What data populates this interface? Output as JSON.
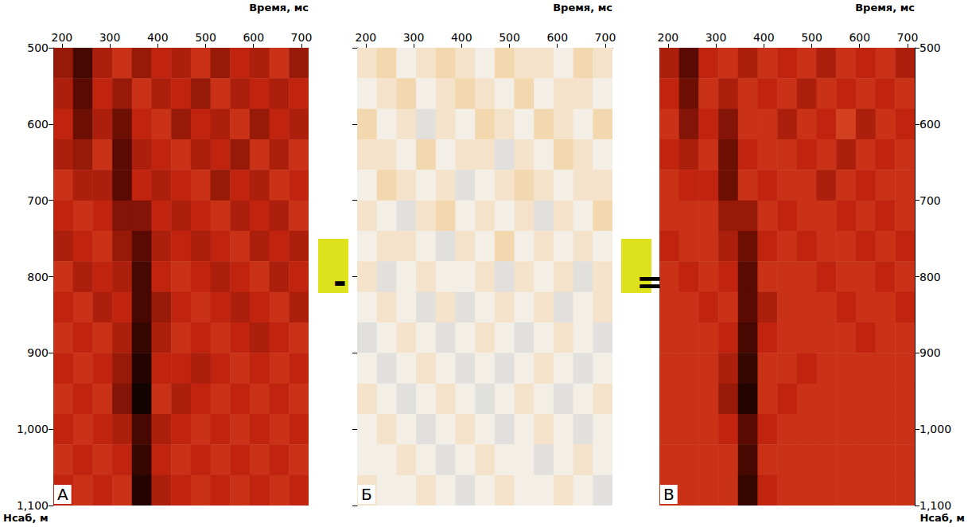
{
  "chart_data": [
    {
      "type": "heatmap",
      "label": "А",
      "x_label": "Время, мс",
      "y_label": "Нсаб, м",
      "xlim": [
        182,
        715
      ],
      "xticks": [
        200,
        300,
        400,
        500,
        600,
        700
      ],
      "ylim": [
        500,
        1100
      ],
      "yticks": [
        500,
        600,
        700,
        800,
        900,
        1000,
        1100
      ],
      "grid": false,
      "tick_labels": true,
      "colors": [
        "#000000",
        "#5a0a02",
        "#c0240e",
        "#ec6a3a",
        "#f6e3c4"
      ],
      "value_range": [
        -1,
        1
      ],
      "x_bins": [
        182,
        223,
        264,
        305,
        346,
        387,
        428,
        469,
        510,
        551,
        592,
        633,
        674,
        715
      ],
      "y_bins": [
        500,
        540,
        580,
        620,
        660,
        700,
        740,
        780,
        820,
        860,
        900,
        940,
        980,
        1020,
        1060,
        1100
      ],
      "cells": [
        [
          -0.2,
          -0.6,
          -0.1,
          0.1,
          -0.2,
          0.0,
          -0.1,
          0.1,
          -0.2,
          0.0,
          -0.1,
          0.1,
          -0.2
        ],
        [
          -0.1,
          -0.5,
          0.0,
          -0.2,
          0.1,
          -0.1,
          0.0,
          -0.2,
          0.1,
          -0.1,
          0.0,
          -0.1,
          0.0
        ],
        [
          0.0,
          -0.4,
          -0.1,
          -0.4,
          0.0,
          0.1,
          -0.2,
          0.0,
          -0.1,
          0.1,
          -0.2,
          0.0,
          -0.1
        ],
        [
          -0.1,
          -0.2,
          0.1,
          -0.5,
          -0.1,
          0.0,
          0.1,
          -0.1,
          0.0,
          -0.2,
          0.1,
          -0.1,
          0.1
        ],
        [
          0.1,
          -0.1,
          -0.1,
          -0.5,
          0.0,
          -0.1,
          0.0,
          0.1,
          -0.2,
          0.0,
          -0.1,
          0.1,
          0.0
        ],
        [
          0.0,
          0.1,
          0.0,
          -0.3,
          -0.3,
          0.0,
          -0.1,
          0.0,
          0.1,
          -0.1,
          0.0,
          -0.1,
          0.1
        ],
        [
          -0.1,
          0.0,
          0.1,
          -0.2,
          -0.5,
          -0.1,
          0.0,
          -0.1,
          0.0,
          0.1,
          -0.1,
          0.0,
          -0.1
        ],
        [
          0.1,
          -0.1,
          0.0,
          -0.1,
          -0.6,
          0.0,
          0.1,
          0.0,
          -0.1,
          0.0,
          0.1,
          -0.1,
          0.0
        ],
        [
          0.0,
          0.1,
          -0.1,
          0.0,
          -0.6,
          -0.2,
          0.0,
          0.1,
          0.0,
          -0.1,
          0.0,
          0.1,
          -0.1
        ],
        [
          0.1,
          0.0,
          0.1,
          -0.1,
          -0.7,
          -0.1,
          0.1,
          0.0,
          0.1,
          0.0,
          -0.1,
          0.0,
          0.1
        ],
        [
          0.0,
          0.1,
          0.0,
          -0.2,
          -0.8,
          0.0,
          0.0,
          -0.1,
          0.0,
          0.1,
          0.0,
          0.1,
          0.0
        ],
        [
          0.1,
          0.0,
          0.1,
          -0.3,
          -0.9,
          0.1,
          -0.1,
          0.0,
          0.1,
          0.0,
          0.1,
          0.0,
          0.1
        ],
        [
          0.0,
          0.1,
          0.0,
          -0.1,
          -0.6,
          -0.1,
          0.0,
          0.1,
          0.0,
          0.1,
          0.0,
          0.1,
          0.0
        ],
        [
          0.1,
          0.0,
          0.1,
          0.0,
          -0.7,
          0.0,
          0.1,
          0.0,
          0.1,
          0.0,
          0.1,
          0.0,
          0.1
        ],
        [
          0.0,
          0.1,
          0.0,
          0.1,
          -0.8,
          -0.1,
          0.0,
          0.1,
          0.0,
          0.1,
          0.0,
          0.1,
          0.0
        ]
      ]
    },
    {
      "type": "heatmap",
      "label": "Б",
      "x_label": "Время, мс",
      "xlim": [
        182,
        715
      ],
      "xticks": [
        200,
        300,
        400,
        500,
        600,
        700
      ],
      "ylim": [
        500,
        1100
      ],
      "yticks": [
        500,
        600,
        700,
        800,
        900,
        1000,
        1100
      ],
      "grid": false,
      "tick_labels": "x",
      "colors": [
        "#3c4f6a",
        "#9aa6b5",
        "#f4efe6",
        "#f2b35c",
        "#d9770f"
      ],
      "value_range": [
        -1,
        1
      ],
      "x_bins": [
        182,
        223,
        264,
        305,
        346,
        387,
        428,
        469,
        510,
        551,
        592,
        633,
        674,
        715
      ],
      "y_bins": [
        500,
        540,
        580,
        620,
        660,
        700,
        740,
        780,
        820,
        860,
        900,
        940,
        980,
        1020,
        1060,
        1100
      ],
      "cells": [
        [
          0.1,
          0.2,
          0.0,
          0.1,
          0.2,
          0.1,
          0.0,
          0.2,
          0.1,
          0.1,
          0.0,
          0.2,
          0.1
        ],
        [
          0.0,
          0.1,
          0.2,
          0.0,
          0.1,
          0.2,
          0.1,
          0.0,
          0.2,
          0.0,
          0.1,
          0.1,
          0.0
        ],
        [
          0.2,
          0.0,
          0.1,
          -0.1,
          0.1,
          0.0,
          0.2,
          0.1,
          0.0,
          0.2,
          0.1,
          0.0,
          0.2
        ],
        [
          0.1,
          0.1,
          0.0,
          0.2,
          0.0,
          0.1,
          0.1,
          -0.1,
          0.1,
          0.0,
          0.2,
          0.1,
          0.0
        ],
        [
          0.0,
          0.2,
          0.1,
          0.0,
          0.1,
          -0.1,
          0.0,
          0.1,
          0.2,
          0.1,
          0.0,
          0.1,
          0.1
        ],
        [
          0.1,
          0.0,
          -0.1,
          0.1,
          0.2,
          0.0,
          0.1,
          0.0,
          0.1,
          -0.1,
          0.1,
          0.0,
          0.2
        ],
        [
          0.0,
          0.1,
          0.1,
          0.0,
          -0.1,
          0.1,
          0.0,
          0.2,
          0.0,
          0.1,
          0.0,
          0.1,
          0.0
        ],
        [
          0.1,
          -0.1,
          0.0,
          0.1,
          0.0,
          0.0,
          0.1,
          -0.1,
          0.1,
          0.0,
          0.1,
          -0.1,
          0.1
        ],
        [
          0.0,
          0.1,
          0.0,
          -0.1,
          0.1,
          -0.1,
          0.0,
          0.1,
          0.0,
          0.1,
          -0.1,
          0.0,
          0.1
        ],
        [
          -0.1,
          0.0,
          0.1,
          0.0,
          -0.1,
          0.0,
          0.1,
          0.0,
          -0.1,
          0.0,
          0.1,
          0.0,
          -0.1
        ],
        [
          0.0,
          -0.1,
          0.0,
          0.1,
          0.0,
          -0.1,
          0.0,
          -0.1,
          0.0,
          0.1,
          0.0,
          -0.1,
          0.0
        ],
        [
          0.1,
          0.0,
          -0.1,
          0.0,
          0.1,
          0.0,
          -0.1,
          0.0,
          0.1,
          0.0,
          -0.1,
          0.0,
          0.1
        ],
        [
          0.0,
          0.1,
          0.0,
          -0.1,
          0.0,
          0.1,
          0.0,
          -0.1,
          0.0,
          0.1,
          0.0,
          -0.1,
          0.0
        ],
        [
          0.0,
          0.0,
          0.1,
          0.0,
          -0.1,
          0.0,
          0.1,
          0.0,
          0.0,
          -0.1,
          0.0,
          0.1,
          0.0
        ],
        [
          0.1,
          0.0,
          0.0,
          0.1,
          0.0,
          -0.1,
          0.0,
          0.1,
          0.0,
          0.0,
          0.1,
          0.0,
          -0.1
        ]
      ]
    },
    {
      "type": "heatmap",
      "label": "В",
      "x_label": "Время, мс",
      "y_label": "Нсаб, м",
      "xlim": [
        182,
        715
      ],
      "xticks": [
        200,
        300,
        400,
        500,
        600,
        700
      ],
      "ylim": [
        500,
        1100
      ],
      "yticks": [
        500,
        600,
        700,
        800,
        900,
        1000,
        1100
      ],
      "grid": false,
      "tick_labels": true,
      "colors": [
        "#000000",
        "#5a0a02",
        "#c0240e",
        "#ec6a3a",
        "#f6e3c4"
      ],
      "value_range": [
        -1,
        1
      ],
      "x_bins": [
        182,
        223,
        264,
        305,
        346,
        387,
        428,
        469,
        510,
        551,
        592,
        633,
        674,
        715
      ],
      "y_bins": [
        500,
        540,
        580,
        620,
        660,
        700,
        740,
        780,
        820,
        860,
        900,
        940,
        980,
        1020,
        1060,
        1100
      ],
      "cells": [
        [
          -0.1,
          -0.5,
          0.0,
          0.1,
          -0.1,
          0.1,
          0.0,
          0.1,
          -0.1,
          0.1,
          0.0,
          0.1,
          -0.1
        ],
        [
          0.0,
          -0.4,
          0.1,
          -0.1,
          0.1,
          0.0,
          0.1,
          -0.1,
          0.1,
          0.0,
          0.1,
          0.0,
          0.1
        ],
        [
          0.1,
          -0.3,
          0.0,
          -0.3,
          0.1,
          0.1,
          -0.1,
          0.1,
          0.0,
          0.2,
          -0.1,
          0.1,
          0.0
        ],
        [
          0.0,
          -0.1,
          0.1,
          -0.4,
          0.0,
          0.1,
          0.1,
          0.0,
          0.1,
          -0.1,
          0.1,
          0.0,
          0.1
        ],
        [
          0.1,
          0.0,
          0.0,
          -0.4,
          0.1,
          0.0,
          0.1,
          0.1,
          -0.1,
          0.1,
          0.0,
          0.1,
          0.1
        ],
        [
          0.1,
          0.1,
          0.1,
          -0.2,
          -0.2,
          0.1,
          0.0,
          0.1,
          0.1,
          0.0,
          0.1,
          0.0,
          0.1
        ],
        [
          0.0,
          0.1,
          0.1,
          -0.1,
          -0.4,
          0.0,
          0.1,
          0.0,
          0.1,
          0.1,
          0.0,
          0.1,
          0.0
        ],
        [
          0.1,
          0.0,
          0.1,
          0.0,
          -0.5,
          0.1,
          0.1,
          0.1,
          0.0,
          0.1,
          0.1,
          0.0,
          0.1
        ],
        [
          0.1,
          0.1,
          0.0,
          0.1,
          -0.5,
          -0.1,
          0.1,
          0.1,
          0.1,
          0.0,
          0.1,
          0.1,
          0.0
        ],
        [
          0.1,
          0.1,
          0.1,
          0.0,
          -0.6,
          0.0,
          0.1,
          0.1,
          0.1,
          0.1,
          0.0,
          0.1,
          0.1
        ],
        [
          0.1,
          0.1,
          0.1,
          -0.1,
          -0.7,
          0.1,
          0.1,
          0.0,
          0.1,
          0.1,
          0.1,
          0.1,
          0.1
        ],
        [
          0.1,
          0.1,
          0.1,
          -0.2,
          -0.8,
          0.1,
          0.0,
          0.1,
          0.1,
          0.1,
          0.1,
          0.1,
          0.1
        ],
        [
          0.1,
          0.1,
          0.1,
          0.0,
          -0.5,
          0.0,
          0.1,
          0.1,
          0.1,
          0.1,
          0.1,
          0.1,
          0.1
        ],
        [
          0.1,
          0.1,
          0.1,
          0.1,
          -0.6,
          0.1,
          0.1,
          0.1,
          0.1,
          0.1,
          0.1,
          0.1,
          0.1
        ],
        [
          0.1,
          0.1,
          0.1,
          0.1,
          -0.7,
          0.0,
          0.1,
          0.1,
          0.1,
          0.1,
          0.1,
          0.1,
          0.1
        ]
      ]
    }
  ],
  "operators": [
    "-",
    "="
  ]
}
